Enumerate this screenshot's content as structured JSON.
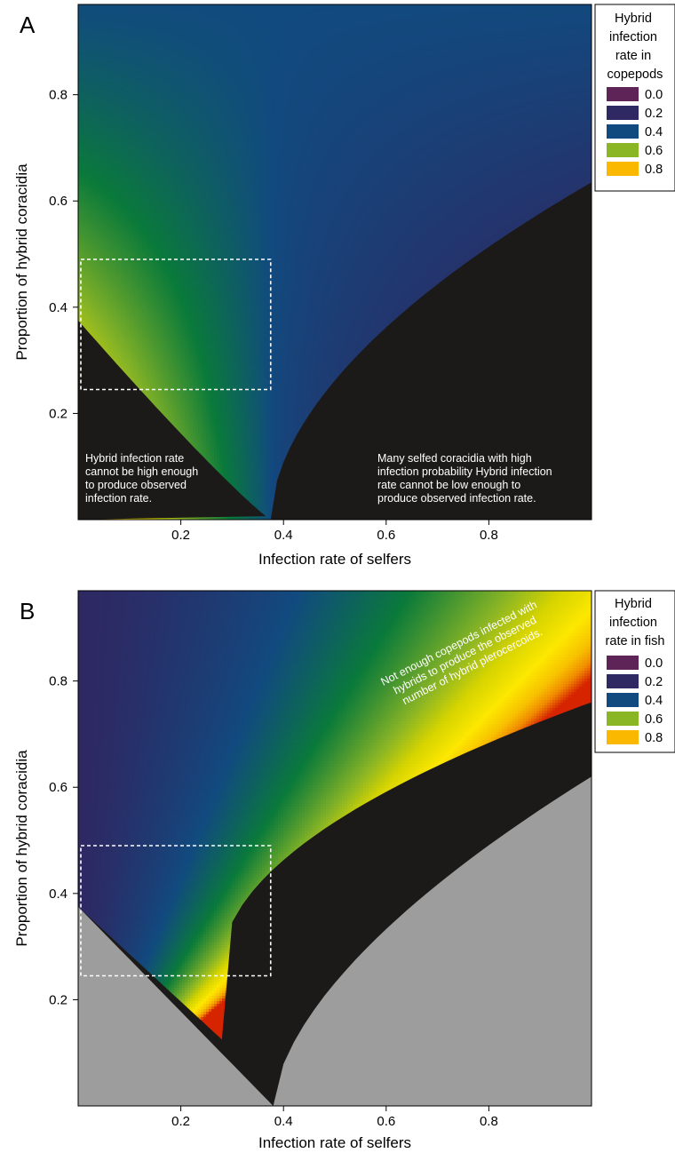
{
  "chart_data": [
    {
      "panel": "A",
      "type": "heatmap",
      "xlabel": "Infection rate of selfers",
      "ylabel": "Proportion of hybrid coracidia",
      "xlim": [
        0.0,
        1.0
      ],
      "ylim": [
        0.0,
        0.97
      ],
      "xticks": [
        "0.2",
        "0.4",
        "0.6",
        "0.8"
      ],
      "yticks": [
        "0.2",
        "0.4",
        "0.6",
        "0.8"
      ],
      "legend": {
        "title": [
          "Hybrid",
          "infection",
          "rate in",
          "copepods"
        ],
        "entries": [
          {
            "label": "0.0",
            "color": "#5e2458"
          },
          {
            "label": "0.2",
            "color": "#2e2863"
          },
          {
            "label": "0.4",
            "color": "#114a7f"
          },
          {
            "label": "0.6",
            "color": "#8ab525"
          },
          {
            "label": "0.8",
            "color": "#fbb800"
          }
        ]
      },
      "annotations": [
        {
          "lines": [
            "Hybrid infection rate",
            "cannot be high enough",
            "to produce observed",
            "infection rate."
          ]
        },
        {
          "lines": [
            "Many selfed coracidia with high",
            "infection probability Hybrid infection",
            "rate cannot be low enough to",
            "produce observed infection rate."
          ]
        }
      ],
      "highlight_box": {
        "x": [
          0.0,
          0.375
        ],
        "y": [
          0.245,
          0.49
        ]
      },
      "colors": {
        "invalid": "#1c1a19"
      }
    },
    {
      "panel": "B",
      "type": "heatmap",
      "xlabel": "Infection rate of selfers",
      "ylabel": "Proportion of hybrid coracidia",
      "xlim": [
        0.0,
        1.0
      ],
      "ylim": [
        0.0,
        0.97
      ],
      "xticks": [
        "0.2",
        "0.4",
        "0.6",
        "0.8"
      ],
      "yticks": [
        "0.2",
        "0.4",
        "0.6",
        "0.8"
      ],
      "legend": {
        "title": [
          "Hybrid",
          "infection",
          "rate in fish"
        ],
        "entries": [
          {
            "label": "0.0",
            "color": "#5e2458"
          },
          {
            "label": "0.2",
            "color": "#2e2863"
          },
          {
            "label": "0.4",
            "color": "#114a7f"
          },
          {
            "label": "0.6",
            "color": "#8ab525"
          },
          {
            "label": "0.8",
            "color": "#fbb800"
          }
        ]
      },
      "annotations": [
        {
          "lines": [
            "Not enough copepods infected with",
            "hybrids to produce the observed",
            "number of hybrid plerocercoids."
          ]
        }
      ],
      "highlight_box": {
        "x": [
          0.0,
          0.375
        ],
        "y": [
          0.245,
          0.49
        ]
      },
      "colors": {
        "invalid": "#1c1a19",
        "outside": "#9d9d9d"
      }
    }
  ]
}
